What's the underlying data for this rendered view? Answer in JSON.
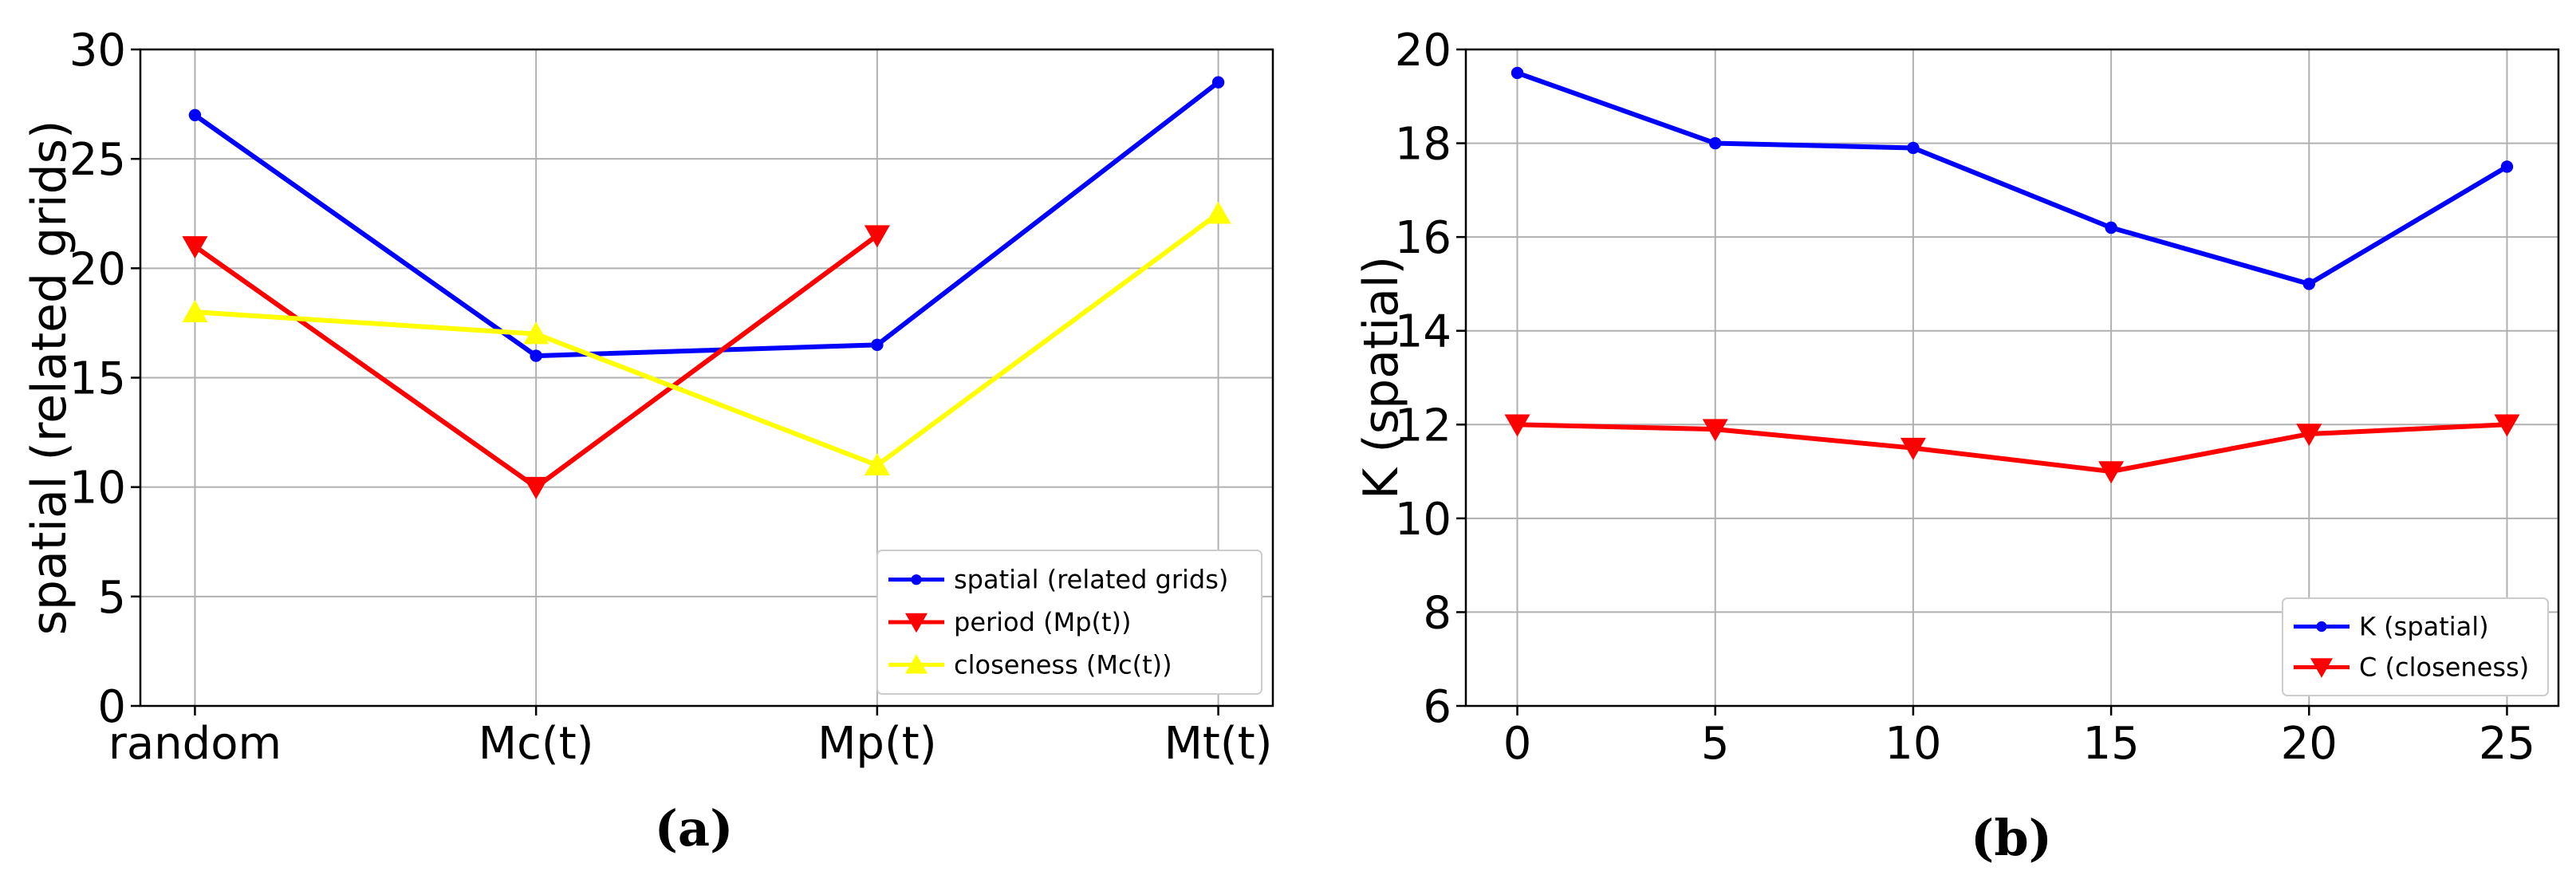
{
  "chart_data": [
    {
      "id": "a",
      "type": "line",
      "caption": "(a)",
      "title": "",
      "xlabel": "",
      "ylabel": "spatial (related grids)",
      "categories": [
        "random",
        "Mc(t)",
        "Mp(t)",
        "Mt(t)"
      ],
      "ylim": [
        0,
        30
      ],
      "yticks": [
        0,
        5,
        10,
        15,
        20,
        25,
        30
      ],
      "grid": true,
      "legend_position": "lower-right",
      "series": [
        {
          "name": "spatial (related grids)",
          "color": "#0000ff",
          "marker": "circle",
          "values": [
            27,
            16,
            16.5,
            28.5
          ]
        },
        {
          "name": "period (Mp(t))",
          "color": "#ff0000",
          "marker": "triangle-down",
          "values": [
            21,
            10,
            21.5,
            null
          ]
        },
        {
          "name": "closeness (Mc(t))",
          "color": "#ffff00",
          "marker": "triangle-up",
          "values": [
            18,
            17,
            11,
            22.5
          ]
        }
      ]
    },
    {
      "id": "b",
      "type": "line",
      "caption": "(b)",
      "title": "",
      "xlabel": "",
      "ylabel": "K (spatial)",
      "x": [
        0,
        5,
        10,
        15,
        20,
        25
      ],
      "xlim": [
        -1.3,
        26.3
      ],
      "ylim": [
        6,
        20
      ],
      "yticks": [
        6,
        8,
        10,
        12,
        14,
        16,
        18,
        20
      ],
      "grid": true,
      "legend_position": "lower-right",
      "series": [
        {
          "name": "K (spatial)",
          "color": "#0000ff",
          "marker": "circle",
          "values": [
            19.5,
            18,
            17.9,
            16.2,
            15,
            17.5
          ]
        },
        {
          "name": "C (closeness)",
          "color": "#ff0000",
          "marker": "triangle-down",
          "values": [
            12,
            11.9,
            11.5,
            11,
            11.8,
            12
          ]
        }
      ]
    }
  ]
}
